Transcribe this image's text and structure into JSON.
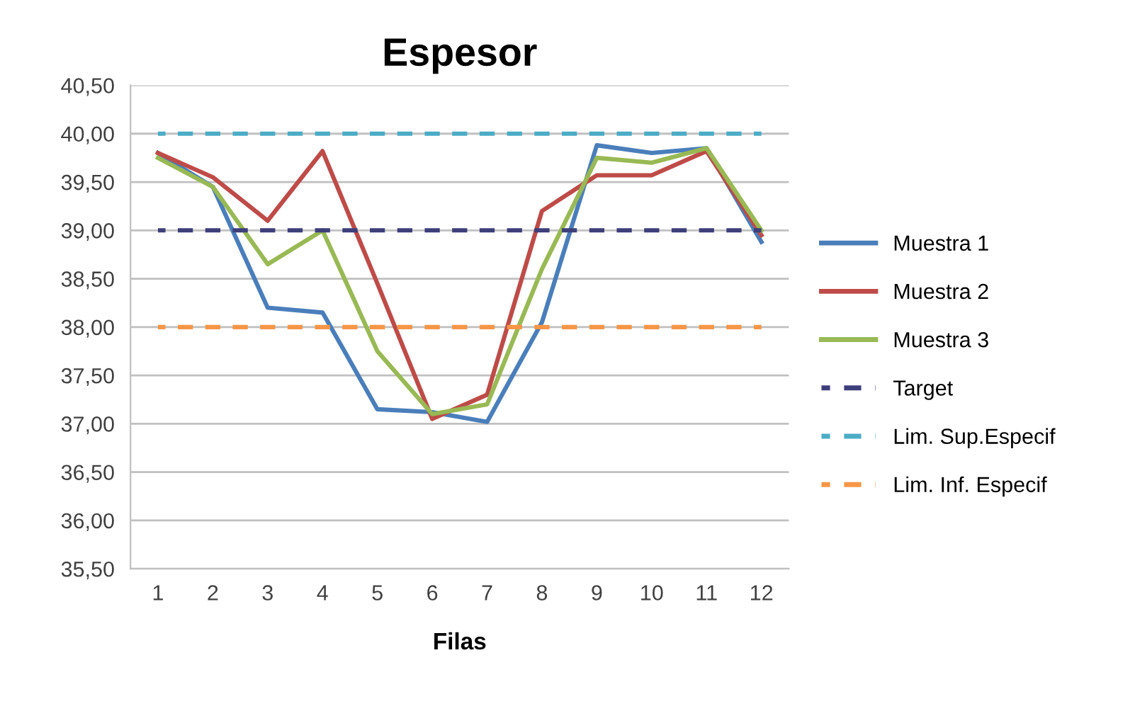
{
  "chart_data": {
    "type": "line",
    "title": "Espesor",
    "xlabel": "Filas",
    "categories": [
      "1",
      "2",
      "3",
      "4",
      "5",
      "6",
      "7",
      "8",
      "9",
      "10",
      "11",
      "12"
    ],
    "series": [
      {
        "name": "Muestra 1",
        "color": "#4a7ebb",
        "line_style": "solid",
        "values": [
          39.8,
          39.45,
          38.2,
          38.15,
          37.15,
          37.12,
          37.02,
          38.05,
          39.88,
          39.8,
          39.85,
          38.88
        ]
      },
      {
        "name": "Muestra 2",
        "color": "#be4b48",
        "line_style": "solid",
        "values": [
          39.8,
          39.55,
          39.1,
          39.82,
          38.45,
          37.05,
          37.3,
          39.2,
          39.57,
          39.57,
          39.82,
          38.95
        ]
      },
      {
        "name": "Muestra 3",
        "color": "#98b954",
        "line_style": "solid",
        "values": [
          39.75,
          39.45,
          38.65,
          39.0,
          37.75,
          37.1,
          37.2,
          38.6,
          39.75,
          39.7,
          39.85,
          39.0
        ]
      },
      {
        "name": "Target",
        "color": "#3d3e7a",
        "line_style": "dashed",
        "values": [
          39,
          39,
          39,
          39,
          39,
          39,
          39,
          39,
          39,
          39,
          39,
          39
        ]
      },
      {
        "name": "Lim. Sup.Especif",
        "color": "#4bacc6",
        "line_style": "dashed",
        "values": [
          40,
          40,
          40,
          40,
          40,
          40,
          40,
          40,
          40,
          40,
          40,
          40
        ]
      },
      {
        "name": "Lim. Inf. Especif",
        "color": "#f79646",
        "line_style": "dashed",
        "values": [
          38,
          38,
          38,
          38,
          38,
          38,
          38,
          38,
          38,
          38,
          38,
          38
        ]
      }
    ],
    "ylim": [
      35.5,
      40.5
    ],
    "yticks": [
      {
        "value": 35.5,
        "label": "35,50"
      },
      {
        "value": 36,
        "label": "36,00"
      },
      {
        "value": 36.5,
        "label": "36,50"
      },
      {
        "value": 37,
        "label": "37,00"
      },
      {
        "value": 37.5,
        "label": "37,50"
      },
      {
        "value": 38,
        "label": "38,00"
      },
      {
        "value": 38.5,
        "label": "38,50"
      },
      {
        "value": 39,
        "label": "39,00"
      },
      {
        "value": 39.5,
        "label": "39,50"
      },
      {
        "value": 40,
        "label": "40,00"
      },
      {
        "value": 40.5,
        "label": "40,50"
      }
    ],
    "grid": "y",
    "legend": "right",
    "marker": "none"
  }
}
